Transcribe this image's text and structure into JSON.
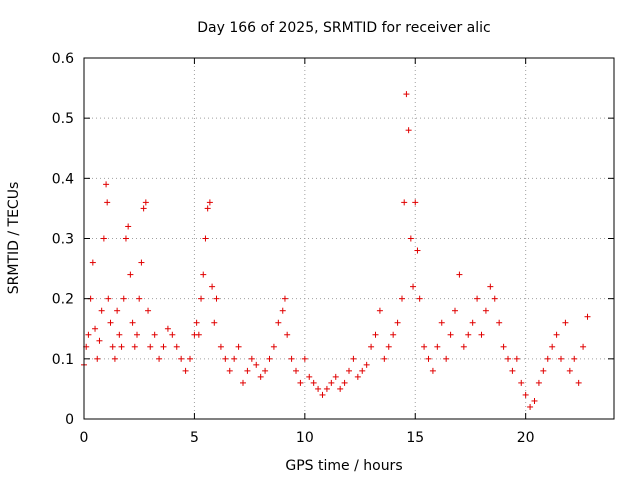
{
  "chart_data": {
    "type": "scatter",
    "title": "Day 166 of 2025, SRMTID for receiver alic",
    "xlabel": "GPS time / hours",
    "ylabel": "SRMTID / TECUs",
    "xlim": [
      0,
      24
    ],
    "ylim": [
      0,
      0.6
    ],
    "xticks": [
      0,
      5,
      10,
      15,
      20
    ],
    "xtick_labels": [
      "0",
      "5",
      "10",
      "15",
      "20"
    ],
    "yticks": [
      0,
      0.1,
      0.2,
      0.3,
      0.4,
      0.5,
      0.6
    ],
    "ytick_labels": [
      "0",
      "0.1",
      "0.2",
      "0.3",
      "0.4",
      "0.5",
      "0.6"
    ],
    "grid": true,
    "marker": "+",
    "color": "#e00000",
    "series": [
      {
        "name": "SRMTID",
        "x": [
          0.0,
          0.1,
          0.2,
          0.3,
          0.4,
          0.5,
          0.6,
          0.7,
          0.8,
          0.9,
          1.0,
          1.05,
          1.1,
          1.2,
          1.3,
          1.4,
          1.5,
          1.6,
          1.7,
          1.8,
          1.9,
          2.0,
          2.1,
          2.2,
          2.3,
          2.4,
          2.5,
          2.6,
          2.7,
          2.8,
          2.9,
          3.0,
          3.2,
          3.4,
          3.6,
          3.8,
          4.0,
          4.2,
          4.4,
          4.6,
          4.8,
          5.0,
          5.1,
          5.2,
          5.3,
          5.4,
          5.5,
          5.6,
          5.7,
          5.8,
          5.9,
          6.0,
          6.2,
          6.4,
          6.6,
          6.8,
          7.0,
          7.2,
          7.4,
          7.6,
          7.8,
          8.0,
          8.2,
          8.4,
          8.6,
          8.8,
          9.0,
          9.1,
          9.2,
          9.4,
          9.6,
          9.8,
          10.0,
          10.2,
          10.4,
          10.6,
          10.8,
          11.0,
          11.2,
          11.4,
          11.6,
          11.8,
          12.0,
          12.2,
          12.4,
          12.6,
          12.8,
          13.0,
          13.2,
          13.4,
          13.6,
          13.8,
          14.0,
          14.2,
          14.4,
          14.5,
          14.6,
          14.7,
          14.8,
          14.9,
          15.0,
          15.1,
          15.2,
          15.4,
          15.6,
          15.8,
          16.0,
          16.2,
          16.4,
          16.6,
          16.8,
          17.0,
          17.2,
          17.4,
          17.6,
          17.8,
          18.0,
          18.2,
          18.4,
          18.6,
          18.8,
          19.0,
          19.2,
          19.4,
          19.6,
          19.8,
          20.0,
          20.2,
          20.4,
          20.6,
          20.8,
          21.0,
          21.2,
          21.4,
          21.6,
          21.8,
          22.0,
          22.2,
          22.4,
          22.6,
          22.8
        ],
        "values": [
          0.09,
          0.12,
          0.14,
          0.2,
          0.26,
          0.15,
          0.1,
          0.13,
          0.18,
          0.3,
          0.39,
          0.36,
          0.2,
          0.16,
          0.12,
          0.1,
          0.18,
          0.14,
          0.12,
          0.2,
          0.3,
          0.32,
          0.24,
          0.16,
          0.12,
          0.14,
          0.2,
          0.26,
          0.35,
          0.36,
          0.18,
          0.12,
          0.14,
          0.1,
          0.12,
          0.15,
          0.14,
          0.12,
          0.1,
          0.08,
          0.1,
          0.14,
          0.16,
          0.14,
          0.2,
          0.24,
          0.3,
          0.35,
          0.36,
          0.22,
          0.16,
          0.2,
          0.12,
          0.1,
          0.08,
          0.1,
          0.12,
          0.06,
          0.08,
          0.1,
          0.09,
          0.07,
          0.08,
          0.1,
          0.12,
          0.16,
          0.18,
          0.2,
          0.14,
          0.1,
          0.08,
          0.06,
          0.1,
          0.07,
          0.06,
          0.05,
          0.04,
          0.05,
          0.06,
          0.07,
          0.05,
          0.06,
          0.08,
          0.1,
          0.07,
          0.08,
          0.09,
          0.12,
          0.14,
          0.18,
          0.1,
          0.12,
          0.14,
          0.16,
          0.2,
          0.36,
          0.54,
          0.48,
          0.3,
          0.22,
          0.36,
          0.28,
          0.2,
          0.12,
          0.1,
          0.08,
          0.12,
          0.16,
          0.1,
          0.14,
          0.18,
          0.24,
          0.12,
          0.14,
          0.16,
          0.2,
          0.14,
          0.18,
          0.22,
          0.2,
          0.16,
          0.12,
          0.1,
          0.08,
          0.1,
          0.06,
          0.04,
          0.02,
          0.03,
          0.06,
          0.08,
          0.1,
          0.12,
          0.14,
          0.1,
          0.16,
          0.08,
          0.1,
          0.06,
          0.12,
          0.17
        ]
      }
    ]
  }
}
